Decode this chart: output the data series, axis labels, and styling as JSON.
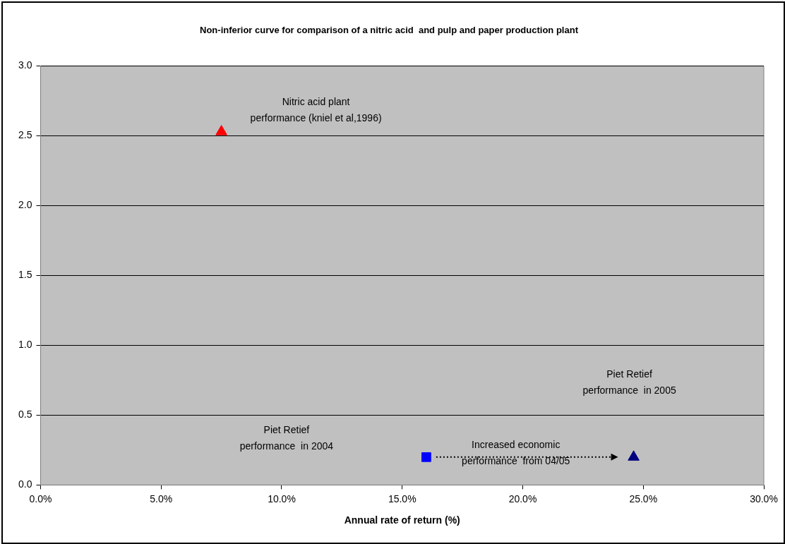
{
  "chart_data": {
    "type": "scatter",
    "title": "Non-inferior curve for comparison of a nitric acid  and pulp and paper production plant",
    "xlabel": "Annual rate of return (%)",
    "series": [
      {
        "color": "#ff0000",
        "marker": "triangle",
        "x": [
          7.5
        ],
        "values": [
          2.53
        ]
      },
      {
        "color": "#0000ff",
        "marker": "square",
        "x": [
          16.0
        ],
        "values": [
          0.2
        ]
      },
      {
        "color": "#000080",
        "marker": "triangle",
        "x": [
          24.6
        ],
        "values": [
          0.2
        ]
      }
    ],
    "xlim": [
      0,
      30
    ],
    "xticks": [
      {
        "value": 0,
        "label": "0.0%"
      },
      {
        "value": 5,
        "label": "5.0%"
      },
      {
        "value": 10,
        "label": "10.0%"
      },
      {
        "value": 15,
        "label": "15.0%"
      },
      {
        "value": 20,
        "label": "20.0%"
      },
      {
        "value": 25,
        "label": "25.0%"
      },
      {
        "value": 30,
        "label": "30.0%"
      }
    ],
    "ylim": [
      0,
      3
    ],
    "yticks": [
      {
        "value": 0,
        "label": "0.0"
      },
      {
        "value": 0.5,
        "label": "0.5"
      },
      {
        "value": 1,
        "label": "1.0"
      },
      {
        "value": 1.5,
        "label": "1.5"
      },
      {
        "value": 2,
        "label": "2.0"
      },
      {
        "value": 2.5,
        "label": "2.5"
      },
      {
        "value": 3,
        "label": "3.0"
      }
    ],
    "grid": "y",
    "legend": false,
    "annotations": [
      "Nitric acid plant\nperformance (kniel et al,1996)",
      "Piet Retief\nperformance  in 2005",
      "Piet Retief\nperformance  in 2004",
      "Increased economic\nperformance  from 04/05"
    ]
  }
}
